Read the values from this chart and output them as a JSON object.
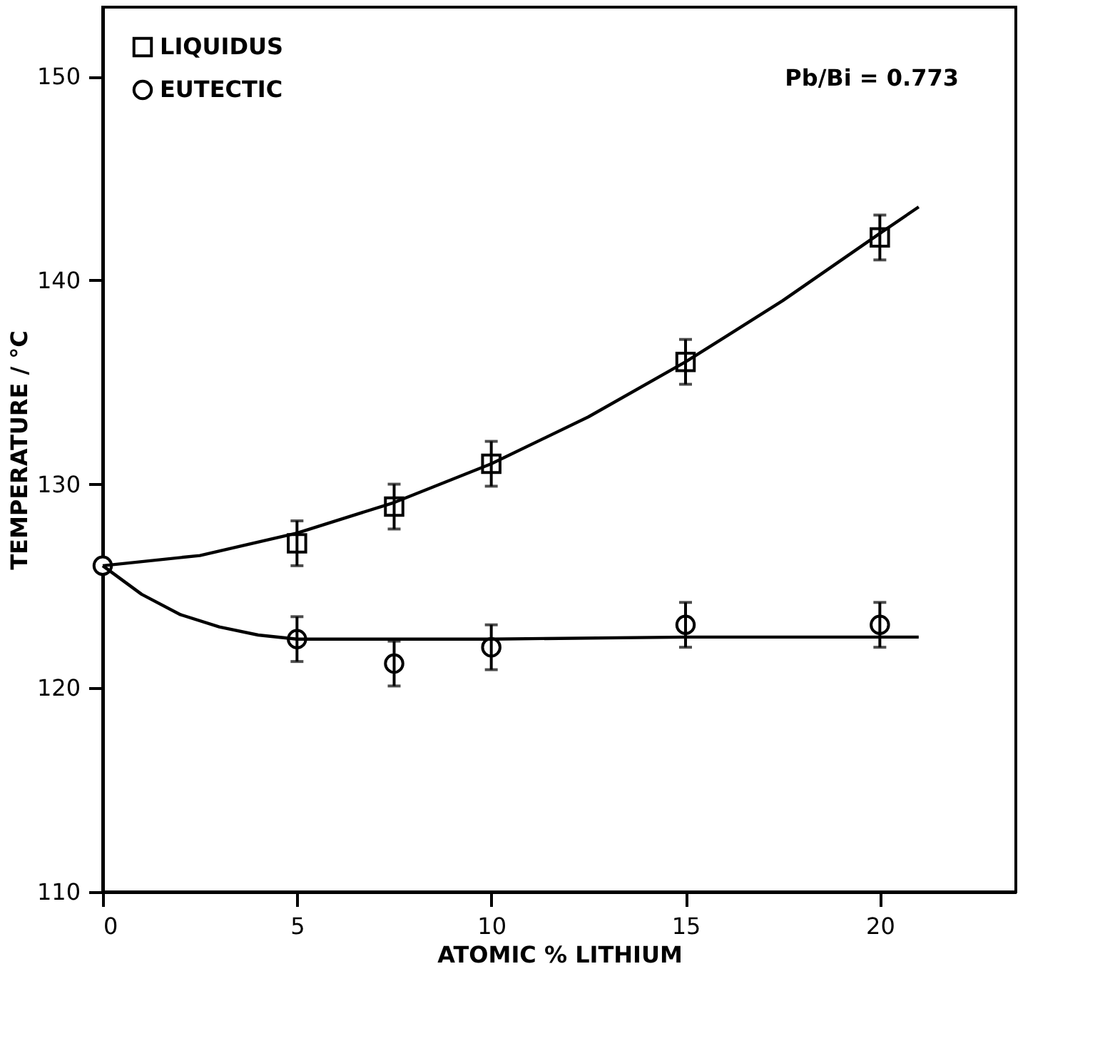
{
  "chart_data": {
    "type": "scatter",
    "xlabel": "ATOMIC % LITHIUM",
    "ylabel": "TEMPERATURE / °C",
    "xlim": [
      0,
      23.5
    ],
    "ylim": [
      110,
      153.4
    ],
    "xticks": [
      0,
      5,
      10,
      15,
      20
    ],
    "yticks": [
      110,
      120,
      130,
      140,
      150
    ],
    "grid": false,
    "legend": "top left",
    "annotations": [
      "Pb/Bi = 0.773"
    ],
    "series": [
      {
        "name": "LIQUIDUS",
        "marker": "square",
        "color": "#000000",
        "x": [
          5,
          7.5,
          10,
          15,
          20
        ],
        "values": [
          127.1,
          128.9,
          131.0,
          136.0,
          142.1
        ],
        "errors": [
          1.1,
          1.1,
          1.1,
          1.1,
          1.1
        ]
      },
      {
        "name": "EUTECTIC",
        "marker": "circle",
        "color": "#000000",
        "x": [
          0,
          5,
          7.5,
          10,
          15,
          20
        ],
        "values": [
          126,
          122.4,
          121.2,
          122.0,
          123.1,
          123.1
        ],
        "errors": [
          null,
          1.1,
          1.1,
          1.1,
          1.1,
          1.1
        ]
      },
      {
        "type": "line",
        "color": "#000000",
        "x": [
          0,
          2.5,
          5,
          7.5,
          10,
          12.5,
          15,
          17.5,
          20,
          21
        ],
        "values": [
          126,
          126.5,
          127.6,
          129.1,
          131.0,
          133.3,
          136.0,
          139.0,
          142.3,
          143.6
        ]
      },
      {
        "type": "line",
        "color": "#000000",
        "x": [
          0,
          1,
          2,
          3,
          4,
          5,
          10,
          15,
          21
        ],
        "values": [
          126,
          124.6,
          123.6,
          123.0,
          122.6,
          122.4,
          122.4,
          122.5,
          122.5
        ]
      }
    ]
  }
}
